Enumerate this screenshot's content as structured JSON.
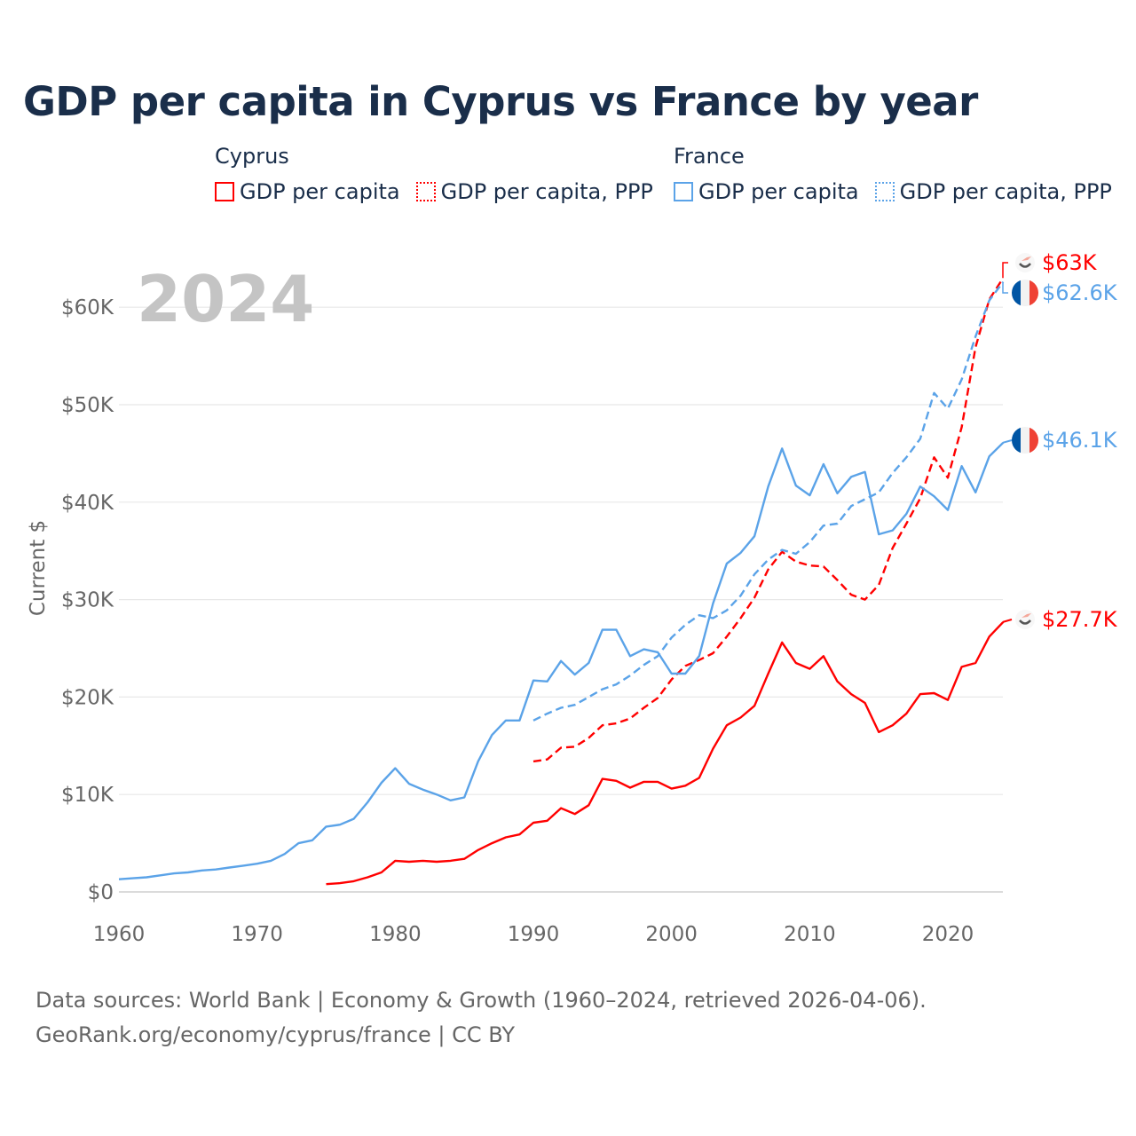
{
  "chart_data": {
    "type": "line",
    "title": "GDP per capita in Cyprus vs France by year",
    "xlabel": "",
    "ylabel": "Current $",
    "xlim": [
      1960,
      2024
    ],
    "ylim": [
      0,
      65000
    ],
    "grid": true,
    "year_watermark": "2024",
    "x_ticks": [
      1960,
      1970,
      1980,
      1990,
      2000,
      2010,
      2020
    ],
    "x_tick_labels": [
      "1960",
      "1970",
      "1980",
      "1990",
      "2000",
      "2010",
      "2020"
    ],
    "y_ticks": [
      0,
      10000,
      20000,
      30000,
      40000,
      50000,
      60000
    ],
    "y_tick_labels": [
      "$0",
      "$10K",
      "$20K",
      "$30K",
      "$40K",
      "$50K",
      "$60K"
    ],
    "legend": {
      "groups": [
        {
          "name": "Cyprus",
          "items": [
            "GDP per capita",
            "GDP per capita, PPP"
          ]
        },
        {
          "name": "France",
          "items": [
            "GDP per capita",
            "GDP per capita, PPP"
          ]
        }
      ],
      "placement": "top"
    },
    "series": [
      {
        "name": "Cyprus GDP per capita",
        "country": "Cyprus",
        "style": "solid",
        "color": "#ff0000",
        "start": 1975,
        "end_label": "$27.7K",
        "values_k": [
          0.8,
          0.9,
          1.1,
          1.5,
          2.0,
          3.2,
          3.1,
          3.2,
          3.1,
          3.2,
          3.4,
          4.3,
          5.0,
          5.6,
          5.9,
          7.1,
          7.3,
          8.6,
          8.0,
          8.9,
          11.6,
          11.4,
          10.7,
          11.3,
          11.3,
          10.6,
          10.9,
          11.7,
          14.7,
          17.1,
          17.9,
          19.1,
          22.4,
          25.6,
          23.5,
          22.9,
          24.2,
          21.6,
          20.3,
          19.4,
          16.4,
          17.1,
          18.3,
          20.3,
          20.4,
          19.7,
          23.1,
          23.5,
          26.2,
          27.7
        ]
      },
      {
        "name": "Cyprus GDP per capita, PPP",
        "country": "Cyprus",
        "style": "dashed",
        "color": "#ff0000",
        "start": 1990,
        "end_label": "$63K",
        "values_k": [
          13.4,
          13.6,
          14.8,
          14.9,
          15.8,
          17.1,
          17.3,
          17.8,
          18.9,
          19.9,
          21.8,
          23.2,
          23.8,
          24.5,
          26.2,
          28.1,
          30.2,
          33.1,
          34.9,
          33.9,
          33.5,
          33.4,
          32.0,
          30.5,
          30.0,
          31.5,
          35.3,
          37.8,
          40.4,
          44.6,
          42.5,
          47.7,
          55.9,
          60.8,
          63.0
        ]
      },
      {
        "name": "France GDP per capita",
        "country": "France",
        "style": "solid",
        "color": "#5ba3e8",
        "start": 1960,
        "end_label": "$46.1K",
        "values_k": [
          1.3,
          1.4,
          1.5,
          1.7,
          1.9,
          2.0,
          2.2,
          2.3,
          2.5,
          2.7,
          2.9,
          3.2,
          3.9,
          5.0,
          5.3,
          6.7,
          6.9,
          7.5,
          9.2,
          11.2,
          12.7,
          11.1,
          10.5,
          10.0,
          9.4,
          9.7,
          13.4,
          16.1,
          17.6,
          17.6,
          21.7,
          21.6,
          23.7,
          22.3,
          23.5,
          26.9,
          26.9,
          24.2,
          24.9,
          24.6,
          22.4,
          22.4,
          24.2,
          29.6,
          33.7,
          34.8,
          36.5,
          41.6,
          45.5,
          41.7,
          40.7,
          43.9,
          40.9,
          42.6,
          43.1,
          36.7,
          37.1,
          38.8,
          41.6,
          40.6,
          39.2,
          43.7,
          41.0,
          44.7,
          46.1
        ]
      },
      {
        "name": "France GDP per capita, PPP",
        "country": "France",
        "style": "dashed",
        "color": "#5ba3e8",
        "start": 1990,
        "end_label": "$62.6K",
        "values_k": [
          17.6,
          18.3,
          18.9,
          19.2,
          20.0,
          20.8,
          21.3,
          22.2,
          23.3,
          24.2,
          26.1,
          27.4,
          28.4,
          28.1,
          28.9,
          30.4,
          32.6,
          34.1,
          35.1,
          34.7,
          35.9,
          37.6,
          37.8,
          39.6,
          40.3,
          41.0,
          43.0,
          44.6,
          46.5,
          51.2,
          49.6,
          52.6,
          57.0,
          60.7,
          62.6
        ]
      }
    ]
  },
  "legend_ui": {
    "cyprus_head": "Cyprus",
    "france_head": "France",
    "gdp": "GDP per capita",
    "ppp": "GDP per capita, PPP"
  },
  "footer": {
    "line1": "Data sources: World Bank | Economy & Growth (1960–2024, retrieved 2026-04-06).",
    "line2": "GeoRank.org/economy/cyprus/france | CC BY"
  },
  "icons": {
    "cyprus": "cyprus-flag-icon",
    "france": "france-flag-icon"
  }
}
